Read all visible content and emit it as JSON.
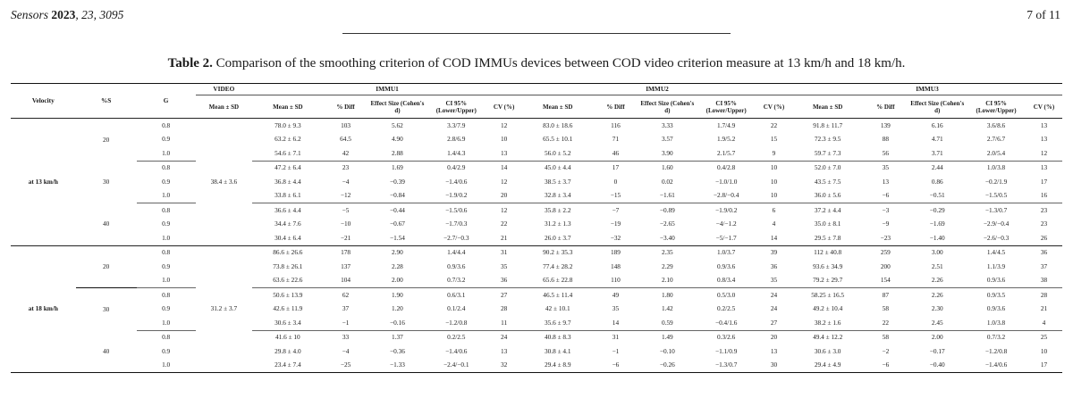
{
  "page_header": {
    "journal": "Sensors",
    "year": "2023",
    "citation": ", 23, 3095",
    "page": "7 of 11"
  },
  "caption": {
    "label": "Table 2.",
    "text": " Comparison of the smoothing criterion of COD IMMUs devices between COD video criterion measure at 13 km/h and 18 km/h."
  },
  "table": {
    "head1": {
      "velocity": "Velocity",
      "s": "%S",
      "g": "G",
      "video": "VIDEO",
      "immu1": "IMMU1",
      "immu2": "IMMU2",
      "immu3": "IMMU3"
    },
    "head2": {
      "video_mean": "Mean ± SD",
      "mean": "Mean ± SD",
      "diff": "% Diff",
      "effect": "Effect Size (Cohen's d)",
      "ci": "CI 95% (Lower/Upper)",
      "cv": "CV (%)"
    },
    "groups": [
      {
        "velocity": "at 13 km/h",
        "video_mean": "38.4 ± 3.6",
        "subgroups": [
          {
            "s": "20",
            "rows": [
              [
                "0.8",
                "78.0 ± 9.3",
                "103",
                "5.62",
                "3.3/7.9",
                "12",
                "83.0 ± 18.6",
                "116",
                "3.33",
                "1.7/4.9",
                "22",
                "91.8 ± 11.7",
                "139",
                "6.16",
                "3.6/8.6",
                "13"
              ],
              [
                "0.9",
                "63.2 ± 6.2",
                "64.5",
                "4.90",
                "2.8/6.9",
                "10",
                "65.5 ± 10.1",
                "71",
                "3.57",
                "1.9/5.2",
                "15",
                "72.3 ± 9.5",
                "88",
                "4.71",
                "2.7/6.7",
                "13"
              ],
              [
                "1.0",
                "54.6 ± 7.1",
                "42",
                "2.88",
                "1.4/4.3",
                "13",
                "56.0 ± 5.2",
                "46",
                "3.90",
                "2.1/5.7",
                "9",
                "59.7 ± 7.3",
                "56",
                "3.71",
                "2.0/5.4",
                "12"
              ]
            ]
          },
          {
            "s": "30",
            "rows": [
              [
                "0.8",
                "47.2 ± 6.4",
                "23",
                "1.69",
                "0.4/2.9",
                "14",
                "45.0 ± 4.4",
                "17",
                "1.60",
                "0.4/2.8",
                "10",
                "52.0 ± 7.0",
                "35",
                "2.44",
                "1.0/3.8",
                "13"
              ],
              [
                "0.9",
                "36.8 ± 4.4",
                "−4",
                "−0.39",
                "−1.4/0.6",
                "12",
                "38.5 ± 3.7",
                "0",
                "0.02",
                "−1.0/1.0",
                "10",
                "43.5 ± 7.5",
                "13",
                "0.86",
                "−0.2/1.9",
                "17"
              ],
              [
                "1.0",
                "33.8 ± 6.1",
                "−12",
                "−0.84",
                "−1.9/0.2",
                "20",
                "32.8 ± 3.4",
                "−15",
                "−1.61",
                "−2.8/−0.4",
                "10",
                "36.0 ± 5.6",
                "−6",
                "−0.51",
                "−1.5/0.5",
                "16"
              ]
            ]
          },
          {
            "s": "40",
            "rows": [
              [
                "0.8",
                "36.6 ± 4.4",
                "−5",
                "−0.44",
                "−1.5/0.6",
                "12",
                "35.8 ± 2.2",
                "−7",
                "−0.89",
                "−1.9/0.2",
                "6",
                "37.2 ± 4.4",
                "−3",
                "−0.29",
                "−1.3/0.7",
                "23"
              ],
              [
                "0.9",
                "34.4 ± 7.6",
                "−10",
                "−0.67",
                "−1.7/0.3",
                "22",
                "31.2 ± 1.3",
                "−19",
                "−2.65",
                "−4/−1.2",
                "4",
                "35.0 ± 8.1",
                "−9",
                "−1.69",
                "−2.9/−0.4",
                "23"
              ],
              [
                "1.0",
                "30.4 ± 6.4",
                "−21",
                "−1.54",
                "−2.7/−0.3",
                "21",
                "26.0 ± 3.7",
                "−32",
                "−3.40",
                "−5/−1.7",
                "14",
                "29.5 ± 7.8",
                "−23",
                "−1.40",
                "−2.6/−0.3",
                "26"
              ]
            ]
          }
        ]
      },
      {
        "velocity": "at 18 km/h",
        "video_mean": "31.2 ± 3.7",
        "subgroups": [
          {
            "s": "20",
            "rows": [
              [
                "0.8",
                "86.6 ± 26.6",
                "178",
                "2.90",
                "1.4/4.4",
                "31",
                "90.2 ± 35.3",
                "189",
                "2.35",
                "1.0/3.7",
                "39",
                "112 ± 40.8",
                "259",
                "3.00",
                "1.4/4.5",
                "36"
              ],
              [
                "0.9",
                "73.8 ± 26.1",
                "137",
                "2.28",
                "0.9/3.6",
                "35",
                "77.4 ± 28.2",
                "148",
                "2.29",
                "0.9/3.6",
                "36",
                "93.6 ± 34.9",
                "200",
                "2.51",
                "1.1/3.9",
                "37"
              ],
              [
                "1.0",
                "63.6 ± 22.6",
                "104",
                "2.00",
                "0.7/3.2",
                "36",
                "65.6 ± 22.8",
                "110",
                "2.10",
                "0.8/3.4",
                "35",
                "79.2 ± 29.7",
                "154",
                "2.26",
                "0.9/3.6",
                "38"
              ]
            ]
          },
          {
            "s": "30",
            "rows": [
              [
                "0.8",
                "50.6 ± 13.9",
                "62",
                "1.90",
                "0.6/3.1",
                "27",
                "46.5 ± 11.4",
                "49",
                "1.80",
                "0.5/3.0",
                "24",
                "58.25 ± 16.5",
                "87",
                "2.26",
                "0.9/3.5",
                "28"
              ],
              [
                "0.9",
                "42.6 ± 11.9",
                "37",
                "1.20",
                "0.1/2.4",
                "28",
                "42 ± 10.1",
                "35",
                "1.42",
                "0.2/2.5",
                "24",
                "49.2 ± 10.4",
                "58",
                "2.30",
                "0.9/3.6",
                "21"
              ],
              [
                "1.0",
                "30.6 ± 3.4",
                "−1",
                "−0.16",
                "−1.2/0.8",
                "11",
                "35.6 ± 9.7",
                "14",
                "0.59",
                "−0.4/1.6",
                "27",
                "38.2 ± 1.6",
                "22",
                "2.45",
                "1.0/3.8",
                "4"
              ]
            ]
          },
          {
            "s": "40",
            "rows": [
              [
                "0.8",
                "41.6 ± 10",
                "33",
                "1.37",
                "0.2/2.5",
                "24",
                "40.8 ± 8.3",
                "31",
                "1.49",
                "0.3/2.6",
                "20",
                "49.4 ± 12.2",
                "58",
                "2.00",
                "0.7/3.2",
                "25"
              ],
              [
                "0.9",
                "29.8 ± 4.0",
                "−4",
                "−0.36",
                "−1.4/0.6",
                "13",
                "30.8 ± 4.1",
                "−1",
                "−0.10",
                "−1.1/0.9",
                "13",
                "30.6 ± 3.0",
                "−2",
                "−0.17",
                "−1.2/0.8",
                "10"
              ],
              [
                "1.0",
                "23.4 ± 7.4",
                "−25",
                "−1.33",
                "−2.4/−0.1",
                "32",
                "29.4 ± 8.9",
                "−6",
                "−0.26",
                "−1.3/0.7",
                "30",
                "29.4 ± 4.9",
                "−6",
                "−0.40",
                "−1.4/0.6",
                "17"
              ]
            ]
          }
        ]
      }
    ]
  }
}
